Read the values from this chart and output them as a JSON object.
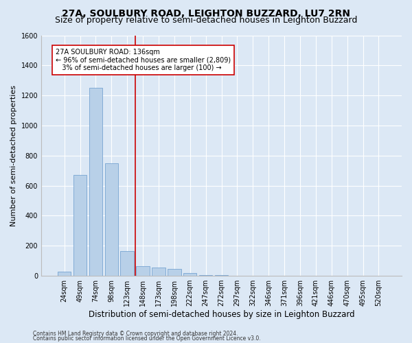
{
  "title": "27A, SOULBURY ROAD, LEIGHTON BUZZARD, LU7 2RN",
  "subtitle": "Size of property relative to semi-detached houses in Leighton Buzzard",
  "xlabel": "Distribution of semi-detached houses by size in Leighton Buzzard",
  "ylabel": "Number of semi-detached properties",
  "footer1": "Contains HM Land Registry data © Crown copyright and database right 2024.",
  "footer2": "Contains public sector information licensed under the Open Government Licence v3.0.",
  "categories": [
    "24sqm",
    "49sqm",
    "74sqm",
    "98sqm",
    "123sqm",
    "148sqm",
    "173sqm",
    "198sqm",
    "222sqm",
    "247sqm",
    "272sqm",
    "297sqm",
    "322sqm",
    "346sqm",
    "371sqm",
    "396sqm",
    "421sqm",
    "446sqm",
    "470sqm",
    "495sqm",
    "520sqm"
  ],
  "values": [
    30,
    670,
    1250,
    750,
    165,
    65,
    55,
    45,
    20,
    5,
    3,
    2,
    1,
    0,
    0,
    0,
    0,
    0,
    0,
    0,
    0
  ],
  "bar_color": "#b8d0e8",
  "bar_edge_color": "#6699cc",
  "vline_color": "#cc0000",
  "annotation_text": "27A SOULBURY ROAD: 136sqm\n← 96% of semi-detached houses are smaller (2,809)\n   3% of semi-detached houses are larger (100) →",
  "annotation_box_color": "#ffffff",
  "annotation_box_edge": "#cc0000",
  "ylim": [
    0,
    1600
  ],
  "yticks": [
    0,
    200,
    400,
    600,
    800,
    1000,
    1200,
    1400,
    1600
  ],
  "bg_color": "#dce8f5",
  "axes_bg_color": "#dce8f5",
  "title_fontsize": 10,
  "subtitle_fontsize": 9,
  "tick_fontsize": 7,
  "xlabel_fontsize": 8.5,
  "ylabel_fontsize": 8,
  "annotation_fontsize": 7,
  "footer_fontsize": 5.5
}
